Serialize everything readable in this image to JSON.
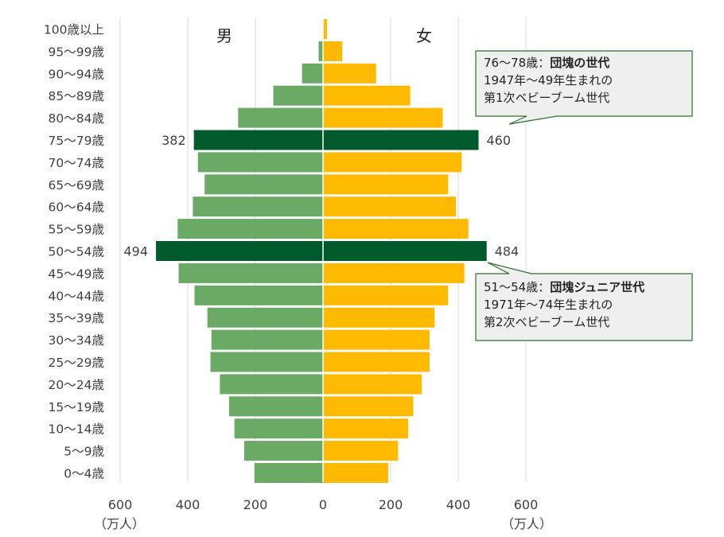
{
  "chart_data": {
    "type": "bar",
    "categories": [
      "100歳以上",
      "95～99歳",
      "90～94歳",
      "85～89歳",
      "80～84歳",
      "75～79歳",
      "70～74歳",
      "65～69歳",
      "60～64歳",
      "55～59歳",
      "50～54歳",
      "45～49歳",
      "40～44歳",
      "35～39歳",
      "30～34歳",
      "25～29歳",
      "20～24歳",
      "15～19歳",
      "10～14歳",
      "5～9歳",
      "0～4歳"
    ],
    "series": [
      {
        "name": "男",
        "values": [
          1,
          13,
          62,
          147,
          251,
          382,
          370,
          350,
          385,
          430,
          494,
          427,
          380,
          342,
          330,
          333,
          305,
          278,
          262,
          233,
          203
        ],
        "color": "#6aaa64",
        "highlight_color": "#005a2b"
      },
      {
        "name": "女",
        "values": [
          12,
          57,
          157,
          258,
          354,
          460,
          410,
          370,
          393,
          430,
          484,
          418,
          370,
          330,
          315,
          315,
          292,
          267,
          252,
          222,
          193
        ],
        "color": "#ffb900",
        "highlight_color": "#005a2b"
      }
    ],
    "highlight": [
      "75～79歳",
      "50～54歳"
    ],
    "data_labels": {
      "75～79歳": {
        "male": "382",
        "female": "460"
      },
      "50～54歳": {
        "male": "494",
        "female": "484"
      }
    },
    "x_ticks": [
      "600",
      "400",
      "200",
      "0",
      "200",
      "400",
      "600"
    ],
    "x_unit": "（万人）",
    "xlim": [
      -600,
      600
    ],
    "grid": true
  },
  "callouts": [
    {
      "line1_normal": "76～78歳：",
      "line1_bold": "団塊の世代",
      "line2": "1947年～49年生まれの",
      "line3": "第1次ベビーブーム世代"
    },
    {
      "line1_normal": "51～54歳：",
      "line1_bold": "団塊ジュニア世代",
      "line2": "1971年～74年生まれの",
      "line3": "第2次ベビーブーム世代"
    }
  ]
}
